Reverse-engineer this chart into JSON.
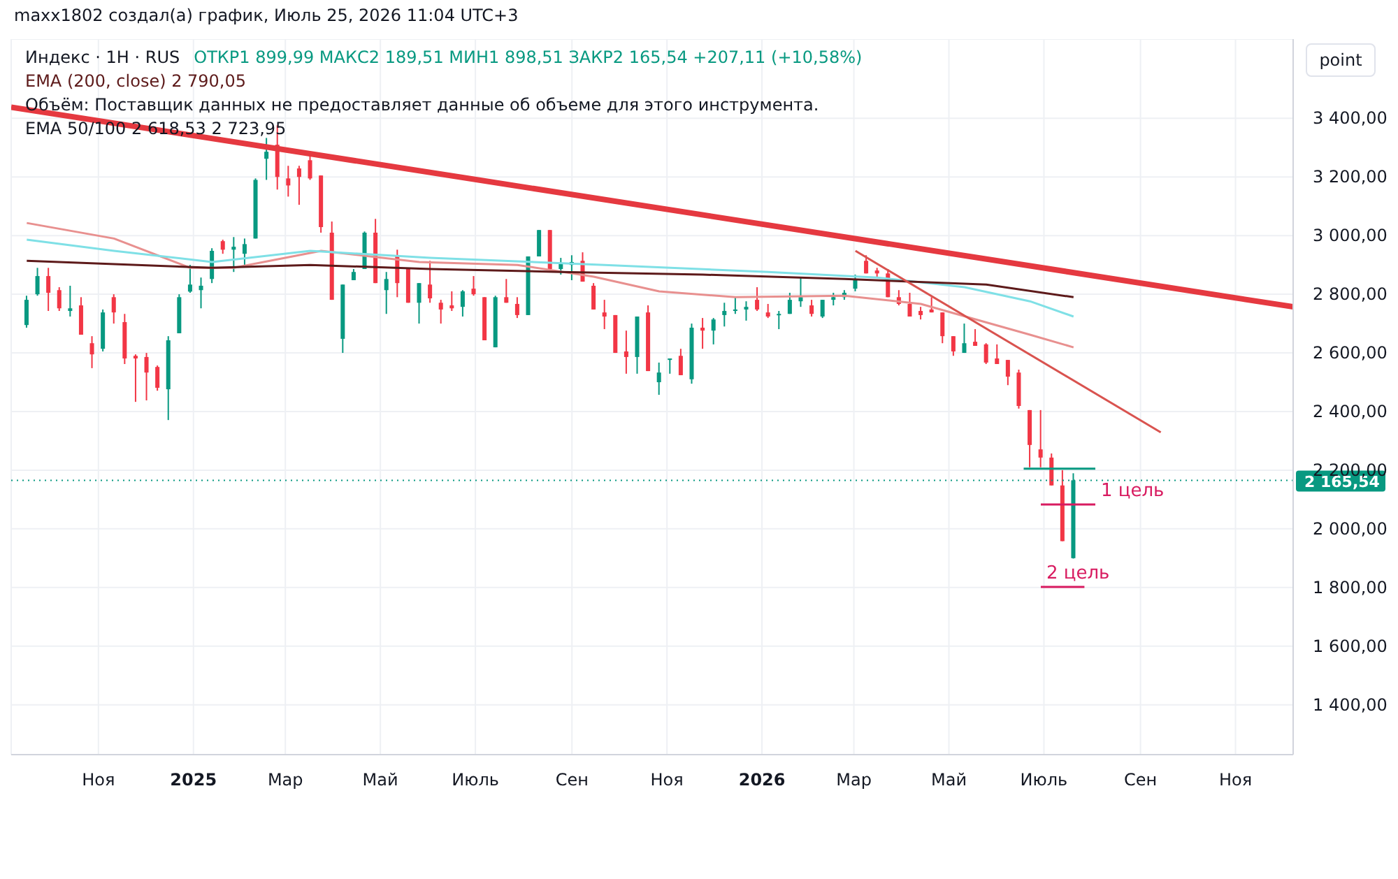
{
  "chart_data": {
    "type": "candlestick",
    "title": "Индекс · 1Н · RUS",
    "subtitle": "ОТКР1 899,99  МАКС2 189,51  МИН1 898,51  ЗАКР2 165,54  +207,11 (+10,58%)",
    "annotations": [
      "maxx1802 создал(а) график, Июль 25, 2026 11:04 UTC+3",
      "EMA (200, close)  2 790,05",
      "Объём: Поставщик данных не предоставляет данные об объеме для этого инструмента.",
      "EMA 50/100  2 618,53  2 723,95",
      "point",
      {
        "text": "1 цель",
        "x": "2026-08-03",
        "y": 2083
      },
      {
        "text": "2 цель",
        "x": "2026-06-29",
        "y": 1802
      }
    ],
    "x": [
      "2024-09-16",
      "2024-09-23",
      "2024-09-30",
      "2024-10-07",
      "2024-10-14",
      "2024-10-21",
      "2024-10-28",
      "2024-11-04",
      "2024-11-11",
      "2024-11-18",
      "2024-11-25",
      "2024-12-02",
      "2024-12-09",
      "2024-12-16",
      "2024-12-23",
      "2024-12-30",
      "2025-01-06",
      "2025-01-13",
      "2025-01-20",
      "2025-01-27",
      "2025-02-03",
      "2025-02-10",
      "2025-02-17",
      "2025-02-24",
      "2025-03-03",
      "2025-03-10",
      "2025-03-17",
      "2025-03-24",
      "2025-03-31",
      "2025-04-07",
      "2025-04-14",
      "2025-04-21",
      "2025-04-28",
      "2025-05-05",
      "2025-05-12",
      "2025-05-19",
      "2025-05-26",
      "2025-06-02",
      "2025-06-09",
      "2025-06-16",
      "2025-06-23",
      "2025-06-30",
      "2025-07-07",
      "2025-07-14",
      "2025-07-21",
      "2025-07-28",
      "2025-08-04",
      "2025-08-11",
      "2025-08-18",
      "2025-08-25",
      "2025-09-01",
      "2025-09-08",
      "2025-09-15",
      "2025-09-22",
      "2025-09-29",
      "2025-10-06",
      "2025-10-13",
      "2025-10-20",
      "2025-10-27",
      "2025-11-03",
      "2025-11-10",
      "2025-11-17",
      "2025-11-24",
      "2025-12-01",
      "2025-12-08",
      "2025-12-15",
      "2025-12-22",
      "2025-12-29",
      "2026-01-05",
      "2026-01-12",
      "2026-01-19",
      "2026-01-26",
      "2026-02-02",
      "2026-02-09",
      "2026-02-16",
      "2026-02-23",
      "2026-03-02",
      "2026-03-09",
      "2026-03-16",
      "2026-03-23",
      "2026-03-30",
      "2026-04-06",
      "2026-04-13",
      "2026-04-20",
      "2026-04-27",
      "2026-05-04",
      "2026-05-11",
      "2026-05-18",
      "2026-05-25",
      "2026-06-01",
      "2026-06-08",
      "2026-06-15",
      "2026-06-22",
      "2026-06-29",
      "2026-07-06",
      "2026-07-13",
      "2026-07-20"
    ],
    "ohlc": [
      [
        2695,
        2795,
        2686,
        2781
      ],
      [
        2800,
        2890,
        2795,
        2862
      ],
      [
        2862,
        2890,
        2743,
        2805
      ],
      [
        2814,
        2824,
        2743,
        2752
      ],
      [
        2743,
        2829,
        2724,
        2752
      ],
      [
        2762,
        2790,
        2662,
        2662
      ],
      [
        2633,
        2657,
        2548,
        2595
      ],
      [
        2614,
        2748,
        2605,
        2738
      ],
      [
        2790,
        2800,
        2700,
        2738
      ],
      [
        2705,
        2733,
        2562,
        2581
      ],
      [
        2590,
        2595,
        2433,
        2581
      ],
      [
        2586,
        2600,
        2438,
        2533
      ],
      [
        2552,
        2557,
        2471,
        2481
      ],
      [
        2476,
        2657,
        2371,
        2643
      ],
      [
        2667,
        2800,
        2667,
        2790
      ],
      [
        2809,
        2900,
        2805,
        2833
      ],
      [
        2814,
        2857,
        2752,
        2829
      ],
      [
        2852,
        2957,
        2838,
        2948
      ],
      [
        2981,
        2986,
        2938,
        2952
      ],
      [
        2952,
        2995,
        2876,
        2962
      ],
      [
        2938,
        2990,
        2900,
        2971
      ],
      [
        2990,
        3195,
        2990,
        3190
      ],
      [
        3262,
        3333,
        3190,
        3286
      ],
      [
        3310,
        3376,
        3157,
        3200
      ],
      [
        3195,
        3238,
        3133,
        3171
      ],
      [
        3229,
        3238,
        3105,
        3200
      ],
      [
        3257,
        3276,
        3190,
        3195
      ],
      [
        3205,
        3205,
        3010,
        3029
      ],
      [
        3010,
        3048,
        2781,
        2781
      ],
      [
        2648,
        2833,
        2600,
        2833
      ],
      [
        2848,
        2886,
        2848,
        2876
      ],
      [
        2886,
        3014,
        2886,
        3010
      ],
      [
        3010,
        3057,
        2838,
        2838
      ],
      [
        2814,
        2876,
        2733,
        2852
      ],
      [
        2933,
        2952,
        2790,
        2838
      ],
      [
        2886,
        2890,
        2771,
        2771
      ],
      [
        2771,
        2838,
        2700,
        2838
      ],
      [
        2833,
        2914,
        2771,
        2786
      ],
      [
        2771,
        2781,
        2700,
        2748
      ],
      [
        2762,
        2810,
        2743,
        2752
      ],
      [
        2757,
        2814,
        2724,
        2810
      ],
      [
        2819,
        2862,
        2795,
        2800
      ],
      [
        2790,
        2790,
        2643,
        2643
      ],
      [
        2619,
        2795,
        2619,
        2790
      ],
      [
        2790,
        2852,
        2771,
        2771
      ],
      [
        2767,
        2790,
        2719,
        2729
      ],
      [
        2729,
        2929,
        2729,
        2929
      ],
      [
        2929,
        3019,
        2929,
        3019
      ],
      [
        3019,
        3019,
        2881,
        2886
      ],
      [
        2886,
        2924,
        2867,
        2905
      ],
      [
        2900,
        2933,
        2848,
        2910
      ],
      [
        2914,
        2943,
        2843,
        2843
      ],
      [
        2829,
        2838,
        2748,
        2748
      ],
      [
        2738,
        2781,
        2681,
        2724
      ],
      [
        2729,
        2729,
        2600,
        2600
      ],
      [
        2605,
        2676,
        2529,
        2586
      ],
      [
        2586,
        2724,
        2529,
        2724
      ],
      [
        2738,
        2762,
        2538,
        2538
      ],
      [
        2500,
        2567,
        2457,
        2533
      ],
      [
        2576,
        2581,
        2529,
        2581
      ],
      [
        2590,
        2614,
        2524,
        2524
      ],
      [
        2510,
        2700,
        2495,
        2686
      ],
      [
        2686,
        2719,
        2614,
        2676
      ],
      [
        2676,
        2719,
        2629,
        2714
      ],
      [
        2729,
        2771,
        2690,
        2743
      ],
      [
        2743,
        2790,
        2733,
        2748
      ],
      [
        2748,
        2776,
        2710,
        2757
      ],
      [
        2781,
        2824,
        2743,
        2748
      ],
      [
        2738,
        2767,
        2719,
        2724
      ],
      [
        2729,
        2743,
        2681,
        2733
      ],
      [
        2733,
        2805,
        2733,
        2781
      ],
      [
        2776,
        2857,
        2757,
        2790
      ],
      [
        2762,
        2781,
        2724,
        2733
      ],
      [
        2724,
        2781,
        2719,
        2781
      ],
      [
        2781,
        2805,
        2762,
        2790
      ],
      [
        2790,
        2814,
        2781,
        2805
      ],
      [
        2819,
        2867,
        2810,
        2852
      ],
      [
        2914,
        2933,
        2871,
        2871
      ],
      [
        2881,
        2890,
        2857,
        2871
      ],
      [
        2871,
        2886,
        2790,
        2790
      ],
      [
        2790,
        2814,
        2762,
        2767
      ],
      [
        2767,
        2805,
        2724,
        2724
      ],
      [
        2743,
        2757,
        2714,
        2729
      ],
      [
        2748,
        2790,
        2738,
        2738
      ],
      [
        2738,
        2738,
        2633,
        2657
      ],
      [
        2657,
        2657,
        2590,
        2605
      ],
      [
        2600,
        2700,
        2600,
        2633
      ],
      [
        2638,
        2681,
        2624,
        2624
      ],
      [
        2629,
        2633,
        2562,
        2567
      ],
      [
        2581,
        2629,
        2562,
        2562
      ],
      [
        2576,
        2576,
        2490,
        2519
      ],
      [
        2533,
        2543,
        2410,
        2419
      ],
      [
        2405,
        2405,
        2210,
        2286
      ],
      [
        2271,
        2405,
        2210,
        2243
      ],
      [
        2243,
        2257,
        2148,
        2148
      ],
      [
        2148,
        2200,
        1958,
        1958
      ],
      [
        1899.99,
        2189.51,
        1898.51,
        2165.54
      ]
    ],
    "colors": [
      "#089981",
      "#089981",
      "#f23645",
      "#f23645",
      "#089981",
      "#f23645",
      "#f23645",
      "#089981",
      "#f23645",
      "#f23645",
      "#f23645",
      "#f23645",
      "#f23645",
      "#089981",
      "#089981",
      "#089981",
      "#089981",
      "#089981",
      "#f23645",
      "#089981",
      "#089981",
      "#089981",
      "#089981",
      "#f23645",
      "#f23645",
      "#f23645",
      "#f23645",
      "#f23645",
      "#f23645",
      "#089981",
      "#089981",
      "#089981",
      "#f23645",
      "#089981",
      "#f23645",
      "#f23645",
      "#089981",
      "#f23645",
      "#f23645",
      "#f23645",
      "#089981",
      "#f23645",
      "#f23645",
      "#089981",
      "#f23645",
      "#f23645",
      "#089981",
      "#089981",
      "#f23645",
      "#089981",
      "#089981",
      "#f23645",
      "#f23645",
      "#f23645",
      "#f23645",
      "#f23645",
      "#089981",
      "#f23645",
      "#089981",
      "#089981",
      "#f23645",
      "#089981",
      "#f23645",
      "#089981",
      "#089981",
      "#089981",
      "#089981",
      "#f23645",
      "#f23645",
      "#089981",
      "#089981",
      "#089981",
      "#f23645",
      "#089981",
      "#089981",
      "#089981",
      "#089981",
      "#f23645",
      "#f23645",
      "#f23645",
      "#f23645",
      "#f23645",
      "#f23645",
      "#f23645",
      "#f23645",
      "#f23645",
      "#089981",
      "#f23645",
      "#f23645",
      "#f23645",
      "#f23645",
      "#f23645",
      "#f23645",
      "#f23645",
      "#f23645",
      "#f23645",
      "#089981"
    ],
    "series": [
      {
        "type": "line",
        "color": "#e8908f",
        "x": [
          "2024-09-16",
          "2024-11-11",
          "2024-12-30",
          "2025-01-27",
          "2025-03-24",
          "2025-05-26",
          "2025-07-28",
          "2025-09-15",
          "2025-10-27",
          "2025-12-15",
          "2026-02-23",
          "2026-04-13",
          "2026-06-22",
          "2026-07-20"
        ],
        "values": [
          3043,
          2990,
          2890,
          2890,
          2948,
          2910,
          2900,
          2860,
          2810,
          2790,
          2795,
          2767,
          2662,
          2619
        ]
      },
      {
        "type": "line",
        "color": "#7fe0e6",
        "x": [
          "2024-09-16",
          "2024-11-11",
          "2025-01-13",
          "2025-03-17",
          "2025-06-02",
          "2025-09-22",
          "2026-01-05",
          "2026-03-16",
          "2026-05-11",
          "2026-06-22",
          "2026-07-20"
        ],
        "values": [
          2986,
          2948,
          2910,
          2948,
          2924,
          2900,
          2876,
          2857,
          2824,
          2776,
          2724
        ]
      },
      {
        "type": "line",
        "color": "#5d1a1a",
        "x": [
          "2024-09-16",
          "2025-01-13",
          "2025-03-17",
          "2025-06-02",
          "2025-08-25",
          "2025-11-24",
          "2026-02-23",
          "2026-05-25",
          "2026-07-20"
        ],
        "values": [
          2914,
          2890,
          2900,
          2886,
          2876,
          2867,
          2852,
          2833,
          2790
        ]
      },
      {
        "type": "line",
        "color": "#e53940",
        "x": [
          "2024-09-06",
          "2026-12-08"
        ],
        "values": [
          3438,
          2757
        ]
      },
      {
        "type": "line",
        "color": "#d9534f",
        "x": [
          "2026-03-02",
          "2026-09-14"
        ],
        "values": [
          2948,
          2329
        ]
      },
      {
        "type": "line",
        "color": "#089981",
        "x": [
          "2026-06-18",
          "2026-08-03"
        ],
        "values": [
          2205,
          2205
        ]
      },
      {
        "type": "line",
        "color": "#d81b60",
        "x": [
          "2026-06-29",
          "2026-08-03"
        ],
        "values": [
          2083,
          2083
        ]
      },
      {
        "type": "line",
        "color": "#d81b60",
        "x": [
          "2026-06-29",
          "2026-07-27"
        ],
        "values": [
          1802,
          1802
        ]
      }
    ],
    "xlim": [
      "2024-09-06",
      "2026-12-08"
    ],
    "xticks": [
      {
        "value": "2024-11-01",
        "label": "Ноя"
      },
      {
        "value": "2025-01-01",
        "label": "2025"
      },
      {
        "value": "2025-03-01",
        "label": "Мар"
      },
      {
        "value": "2025-05-01",
        "label": "Май"
      },
      {
        "value": "2025-07-01",
        "label": "Июль"
      },
      {
        "value": "2025-09-01",
        "label": "Сен"
      },
      {
        "value": "2025-11-01",
        "label": "Ноя"
      },
      {
        "value": "2026-01-01",
        "label": "2026"
      },
      {
        "value": "2026-03-01",
        "label": "Мар"
      },
      {
        "value": "2026-05-01",
        "label": "Май"
      },
      {
        "value": "2026-07-01",
        "label": "Июль"
      },
      {
        "value": "2026-09-01",
        "label": "Сен"
      },
      {
        "value": "2026-11-01",
        "label": "Ноя"
      }
    ],
    "ylim": [
      1230,
      3670
    ],
    "yticks": [
      {
        "value": 1400,
        "label": "1 400,00"
      },
      {
        "value": 1600,
        "label": "1 600,00"
      },
      {
        "value": 1800,
        "label": "1 800,00"
      },
      {
        "value": 2000,
        "label": "2 000,00"
      },
      {
        "value": 2200,
        "label": "2 200,00"
      },
      {
        "value": 2400,
        "label": "2 400,00"
      },
      {
        "value": 2600,
        "label": "2 600,00"
      },
      {
        "value": 2800,
        "label": "2 800,00"
      },
      {
        "value": 3000,
        "label": "3 000,00"
      },
      {
        "value": 3200,
        "label": "3 200,00"
      },
      {
        "value": 3400,
        "label": "3 400,00"
      }
    ],
    "grid": true,
    "ref_lines": [
      {
        "axis": "y",
        "value": 2165.54,
        "label": "2 165,54",
        "color": "#089981",
        "line_style": "dotted"
      }
    ]
  }
}
